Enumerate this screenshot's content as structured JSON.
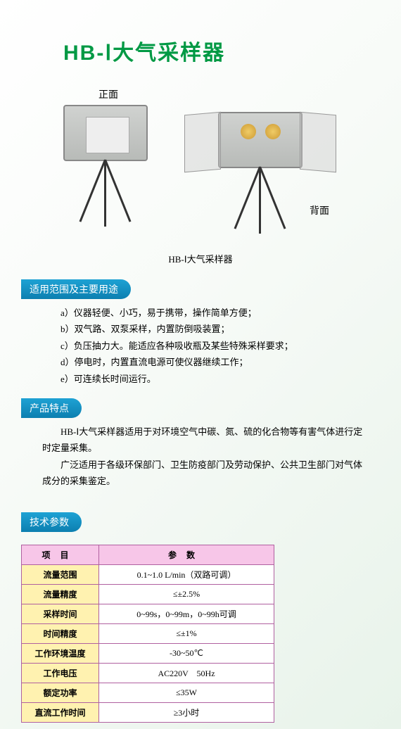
{
  "title": "HB-Ⅰ大气采样器",
  "image_labels": {
    "front": "正面",
    "back": "背面"
  },
  "image_caption": "HB-Ⅰ大气采样器",
  "sections": {
    "scope": {
      "heading": "适用范围及主要用途",
      "items": [
        "a）仪器轻便、小巧，易于携带，操作简单方便；",
        "b）双气路、双泵采样，内置防倒吸装置；",
        "c）负压抽力大。能适应各种吸收瓶及某些特殊采样要求；",
        "d）停电时，内置直流电源可使仪器继续工作；",
        "e）可连续长时间运行。"
      ]
    },
    "features": {
      "heading": "产品特点",
      "paragraphs": [
        "HB-Ⅰ大气采样器适用于对环境空气中碳、氮、硫的化合物等有害气体进行定时定量采集。",
        "广泛适用于各级环保部门、卫生防疫部门及劳动保护、公共卫生部门对气体成分的采集鉴定。"
      ]
    },
    "specs": {
      "heading": "技术参数",
      "table": {
        "header": [
          "项目",
          "参数"
        ],
        "header_bg": "#f7c6e8",
        "label_bg": "#fff2b0",
        "border_color": "#b060a0",
        "rows": [
          {
            "label": "流量范围",
            "value": "0.1~1.0 L/min（双路可调）"
          },
          {
            "label": "流量精度",
            "value": "≤±2.5%"
          },
          {
            "label": "采样时间",
            "value": "0~99s，0~99m，0~99h可调"
          },
          {
            "label": "时间精度",
            "value": "≤±1%"
          },
          {
            "label": "工作环境温度",
            "value": "-30~50℃"
          },
          {
            "label": "工作电压",
            "value": "AC220V　50Hz"
          },
          {
            "label": "额定功率",
            "value": "≤35W"
          },
          {
            "label": "直流工作时间",
            "value": "≥3小时"
          }
        ]
      }
    }
  },
  "colors": {
    "title": "#009944",
    "section_head_gradient": [
      "#1ea2d4",
      "#0c7fb0"
    ],
    "page_bg_gradient": [
      "#ffffff",
      "#e8f3ea"
    ]
  }
}
